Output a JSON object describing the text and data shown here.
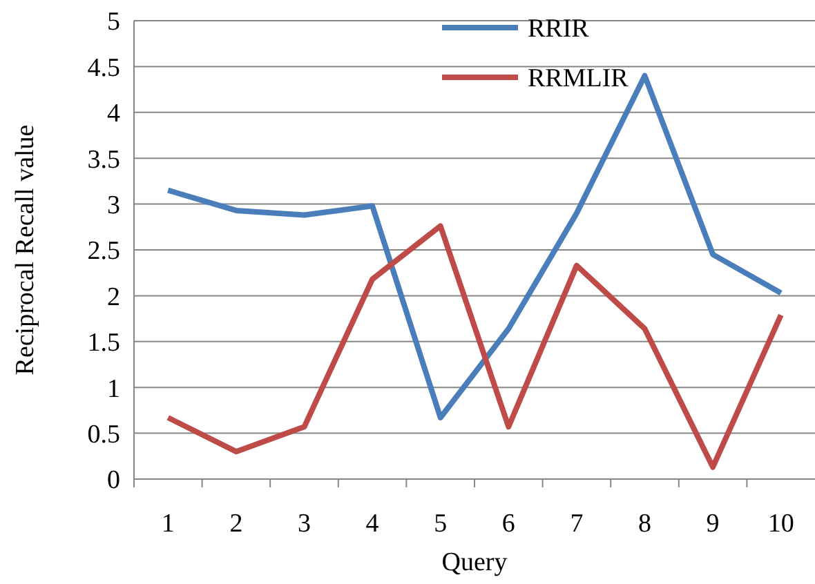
{
  "chart_data": {
    "type": "line",
    "xlabel": "Query",
    "ylabel": "Reciprocal Recall value",
    "categories": [
      "1",
      "2",
      "3",
      "4",
      "5",
      "6",
      "7",
      "8",
      "9",
      "10"
    ],
    "series": [
      {
        "name": "RRIR",
        "color": "#4a7ebb",
        "values": [
          3.15,
          2.93,
          2.88,
          2.98,
          0.67,
          1.64,
          2.9,
          4.4,
          2.45,
          2.03
        ]
      },
      {
        "name": "RRMLIR",
        "color": "#be4b48",
        "values": [
          0.67,
          0.3,
          0.57,
          2.18,
          2.76,
          0.57,
          2.33,
          1.64,
          0.13,
          1.79
        ]
      }
    ],
    "ylim": [
      0,
      5
    ],
    "yticks": [
      0,
      0.5,
      1,
      1.5,
      2,
      2.5,
      3,
      3.5,
      4,
      4.5,
      5
    ],
    "grid": "y",
    "legend": "top right",
    "marker": "none",
    "line_style": "solid"
  }
}
